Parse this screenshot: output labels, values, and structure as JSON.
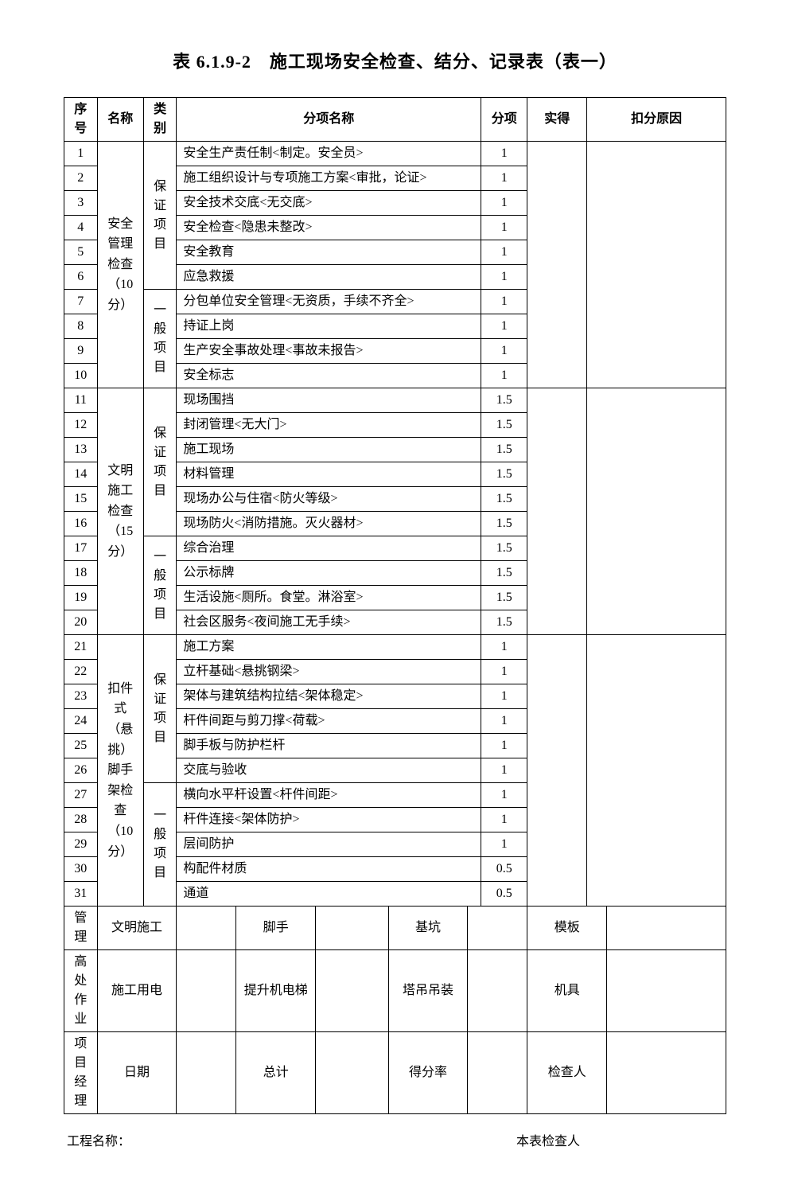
{
  "title": "表 6.1.9-2　施工现场安全检查、结分、记录表（表一）",
  "headers": {
    "seq": "序号",
    "name": "名称",
    "category": "类别",
    "item": "分项名称",
    "score": "分项",
    "actual": "实得",
    "reason": "扣分原因"
  },
  "categories": {
    "guarantee": "保证项目",
    "general": "一般项目"
  },
  "sections": [
    {
      "name": "安全管理检查（10分）",
      "guarantee_items": [
        {
          "seq": 1,
          "item": "安全生产责任制<制定。安全员>",
          "score": "1"
        },
        {
          "seq": 2,
          "item": "施工组织设计与专项施工方案<审批，论证>",
          "score": "1"
        },
        {
          "seq": 3,
          "item": "安全技术交底<无交底>",
          "score": "1"
        },
        {
          "seq": 4,
          "item": "安全检查<隐患未整改>",
          "score": "1"
        },
        {
          "seq": 5,
          "item": "安全教育",
          "score": "1"
        },
        {
          "seq": 6,
          "item": "应急救援",
          "score": "1"
        }
      ],
      "general_items": [
        {
          "seq": 7,
          "item": "分包单位安全管理<无资质，手续不齐全>",
          "score": "1"
        },
        {
          "seq": 8,
          "item": "持证上岗",
          "score": "1"
        },
        {
          "seq": 9,
          "item": "生产安全事故处理<事故未报告>",
          "score": "1"
        },
        {
          "seq": 10,
          "item": "安全标志",
          "score": "1"
        }
      ]
    },
    {
      "name": "文明施工检查（15分）",
      "guarantee_items": [
        {
          "seq": 11,
          "item": "现场围挡",
          "score": "1.5"
        },
        {
          "seq": 12,
          "item": "封闭管理<无大门>",
          "score": "1.5"
        },
        {
          "seq": 13,
          "item": "施工现场",
          "score": "1.5"
        },
        {
          "seq": 14,
          "item": "材料管理",
          "score": "1.5"
        },
        {
          "seq": 15,
          "item": "现场办公与住宿<防火等级>",
          "score": "1.5"
        },
        {
          "seq": 16,
          "item": "现场防火<消防措施。灭火器材>",
          "score": "1.5"
        }
      ],
      "general_items": [
        {
          "seq": 17,
          "item": "综合治理",
          "score": "1.5"
        },
        {
          "seq": 18,
          "item": "公示标牌",
          "score": "1.5"
        },
        {
          "seq": 19,
          "item": "生活设施<厕所。食堂。淋浴室>",
          "score": "1.5"
        },
        {
          "seq": 20,
          "item": "社会区服务<夜间施工无手续>",
          "score": "1.5"
        }
      ]
    },
    {
      "name": "扣件式（悬挑）脚手架检查（10分）",
      "guarantee_items": [
        {
          "seq": 21,
          "item": "施工方案",
          "score": "1"
        },
        {
          "seq": 22,
          "item": "立杆基础<悬挑钢梁>",
          "score": "1"
        },
        {
          "seq": 23,
          "item": "架体与建筑结构拉结<架体稳定>",
          "score": "1"
        },
        {
          "seq": 24,
          "item": "杆件间距与剪刀撑<荷载>",
          "score": "1"
        },
        {
          "seq": 25,
          "item": "脚手板与防护栏杆",
          "score": "1"
        },
        {
          "seq": 26,
          "item": "交底与验收",
          "score": "1"
        }
      ],
      "general_items": [
        {
          "seq": 27,
          "item": "横向水平杆设置<杆件间距>",
          "score": "1"
        },
        {
          "seq": 28,
          "item": "杆件连接<架体防护>",
          "score": "1"
        },
        {
          "seq": 29,
          "item": "层间防护",
          "score": "1"
        },
        {
          "seq": 30,
          "item": "构配件材质",
          "score": "0.5"
        },
        {
          "seq": 31,
          "item": "通道",
          "score": "0.5"
        }
      ]
    }
  ],
  "bottom_rows": [
    {
      "c1": "管理",
      "c2": "文明施工",
      "c3": "",
      "c4": "脚手",
      "c5": "",
      "c6": "基坑",
      "c7": "",
      "c8": "模板",
      "c9": ""
    },
    {
      "c1": "高处作业",
      "c2": "施工用电",
      "c3": "",
      "c4": "提升机电梯",
      "c5": "",
      "c6": "塔吊吊装",
      "c7": "",
      "c8": "机具",
      "c9": ""
    },
    {
      "c1": "项目经理",
      "c2": "日期",
      "c3": "",
      "c4": "总计",
      "c5": "",
      "c6": "得分率",
      "c7": "",
      "c8": "检查人",
      "c9": ""
    }
  ],
  "footer": {
    "project_name_label": "工程名称：",
    "inspector_label": "本表检查人"
  },
  "colors": {
    "background": "#ffffff",
    "text": "#000000",
    "border": "#000000"
  },
  "typography": {
    "title_fontsize": 22,
    "body_fontsize": 16,
    "font_family": "SimSun"
  }
}
